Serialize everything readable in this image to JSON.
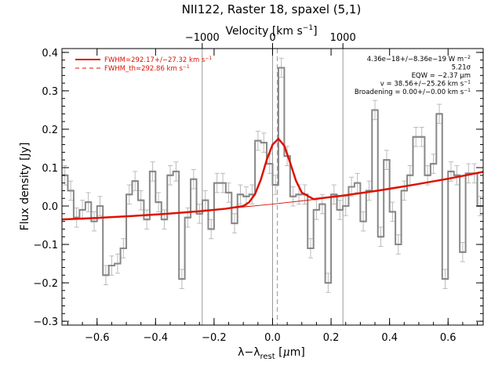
{
  "chart_data": {
    "type": "line",
    "title": "NII122, Raster 18, spaxel (5,1)",
    "xlabel_main": "λ−λ",
    "xlabel_sub": "rest",
    "xlabel_unit_open": " [",
    "xlabel_unit_mu": "μ",
    "xlabel_unit_close": "m]",
    "ylabel": "Flux density [Jy]",
    "top_axis_label": "Velocity [km s",
    "top_axis_exp": "−1",
    "top_axis_close": "]",
    "xlim": [
      -0.72,
      0.72
    ],
    "ylim": [
      -0.31,
      0.41
    ],
    "x_ticks": [
      {
        "value": -0.6,
        "label": "−0.6"
      },
      {
        "value": -0.4,
        "label": "−0.4"
      },
      {
        "value": -0.2,
        "label": "−0.2"
      },
      {
        "value": 0.0,
        "label": "0.0"
      },
      {
        "value": 0.2,
        "label": "0.2"
      },
      {
        "value": 0.4,
        "label": "0.4"
      },
      {
        "value": 0.6,
        "label": "0.6"
      }
    ],
    "y_ticks": [
      {
        "value": -0.3,
        "label": "−0.3"
      },
      {
        "value": -0.2,
        "label": "−0.2"
      },
      {
        "value": -0.1,
        "label": "−0.1"
      },
      {
        "value": 0.0,
        "label": "0.0"
      },
      {
        "value": 0.1,
        "label": "0.1"
      },
      {
        "value": 0.2,
        "label": "0.2"
      },
      {
        "value": 0.3,
        "label": "0.3"
      },
      {
        "value": 0.4,
        "label": "0.4"
      }
    ],
    "top_ticks": [
      {
        "value": -0.2405,
        "label": "−1000"
      },
      {
        "value": 0.0,
        "label": "0"
      },
      {
        "value": 0.2405,
        "label": "1000"
      }
    ],
    "vertical_lines": [
      {
        "x": -0.2405,
        "style": "solid"
      },
      {
        "x": 0.0,
        "style": "solid"
      },
      {
        "x": 0.2405,
        "style": "solid"
      },
      {
        "x": 0.016,
        "style": "dashed"
      }
    ],
    "legend": {
      "placement": "top-left",
      "entries": [
        {
          "text": "FWHM=292.17+/−27.32 km s",
          "sup": "−1",
          "style": "solid",
          "color": "#dd1100"
        },
        {
          "text": "FWHM_th=292.86 km s",
          "sup": "−1",
          "style": "dashed",
          "color": "#dd1100"
        }
      ]
    },
    "annotations": [
      {
        "text": "4.36e−18+/−8.36e−19 W m",
        "sup": "−2"
      },
      {
        "text": "5.21σ",
        "sup": ""
      },
      {
        "text": "EQW = −2.37 μm",
        "sup": ""
      },
      {
        "text": "v = 38.56+/−25.26 km s",
        "sup": "−1"
      },
      {
        "text": "Broadening = 0.00+/−0.00 km s",
        "sup": "−1"
      }
    ],
    "series": [
      {
        "style": "histogram",
        "color": "#888888",
        "bin_width": 0.02,
        "x": [
          -0.72,
          -0.7,
          -0.68,
          -0.66,
          -0.64,
          -0.62,
          -0.6,
          -0.58,
          -0.56,
          -0.54,
          -0.52,
          -0.5,
          -0.48,
          -0.46,
          -0.44,
          -0.42,
          -0.4,
          -0.38,
          -0.36,
          -0.34,
          -0.32,
          -0.3,
          -0.28,
          -0.26,
          -0.24,
          -0.22,
          -0.2,
          -0.18,
          -0.16,
          -0.14,
          -0.12,
          -0.1,
          -0.08,
          -0.06,
          -0.04,
          -0.02,
          0.0,
          0.02,
          0.04,
          0.06,
          0.08,
          0.1,
          0.12,
          0.14,
          0.16,
          0.18,
          0.2,
          0.22,
          0.24,
          0.26,
          0.28,
          0.3,
          0.32,
          0.34,
          0.36,
          0.38,
          0.4,
          0.42,
          0.44,
          0.46,
          0.48,
          0.5,
          0.52,
          0.54,
          0.56,
          0.58,
          0.6,
          0.62,
          0.64,
          0.66,
          0.68,
          0.7
        ],
        "y": [
          0.08,
          0.04,
          -0.03,
          -0.01,
          0.01,
          -0.04,
          0.0,
          -0.18,
          -0.155,
          -0.15,
          -0.11,
          0.03,
          0.065,
          0.015,
          -0.035,
          0.09,
          0.01,
          -0.035,
          0.08,
          0.09,
          -0.19,
          -0.03,
          0.07,
          -0.02,
          0.015,
          -0.06,
          0.06,
          0.06,
          0.035,
          -0.045,
          0.03,
          0.025,
          0.03,
          0.17,
          0.165,
          0.11,
          0.055,
          0.36,
          0.13,
          0.025,
          0.03,
          0.03,
          -0.11,
          -0.01,
          0.005,
          -0.2,
          0.03,
          -0.01,
          0.0,
          0.05,
          0.06,
          -0.04,
          0.04,
          0.25,
          -0.08,
          0.12,
          -0.015,
          -0.1,
          0.04,
          0.08,
          0.18,
          0.18,
          0.08,
          0.11,
          0.24,
          -0.19,
          0.09,
          0.08,
          -0.12,
          0.085,
          0.085,
          0.0
        ],
        "yerr": 0.025
      },
      {
        "style": "line",
        "color": "#dd1100",
        "thin": true,
        "x": [
          -0.72,
          -0.6,
          -0.48,
          -0.36,
          -0.24,
          -0.12,
          0.0,
          0.12,
          0.24,
          0.36,
          0.48,
          0.6,
          0.72
        ],
        "y": [
          -0.035,
          -0.031,
          -0.026,
          -0.02,
          -0.013,
          -0.004,
          0.005,
          0.015,
          0.027,
          0.04,
          0.055,
          0.071,
          0.089
        ]
      },
      {
        "style": "line",
        "color": "#dd1100",
        "x": [
          -0.72,
          -0.6,
          -0.48,
          -0.36,
          -0.24,
          -0.16,
          -0.1,
          -0.08,
          -0.06,
          -0.04,
          -0.02,
          0.0,
          0.02,
          0.04,
          0.06,
          0.08,
          0.1,
          0.14,
          0.24,
          0.36,
          0.48,
          0.6,
          0.72
        ],
        "y": [
          -0.035,
          -0.031,
          -0.026,
          -0.02,
          -0.013,
          -0.007,
          0.0,
          0.01,
          0.031,
          0.069,
          0.12,
          0.16,
          0.175,
          0.157,
          0.113,
          0.066,
          0.035,
          0.018,
          0.027,
          0.04,
          0.055,
          0.071,
          0.089
        ]
      }
    ]
  }
}
